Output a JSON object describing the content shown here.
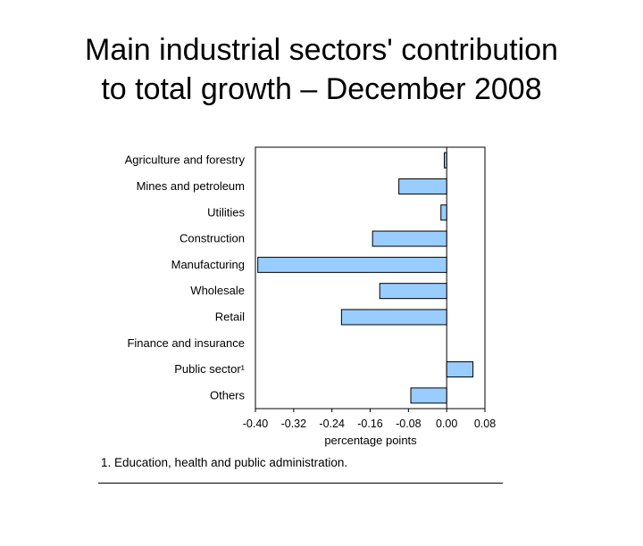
{
  "title_line1": "Main industrial sectors' contribution",
  "title_line2": "to total growth – December 2008",
  "chart_data": {
    "type": "bar",
    "orientation": "horizontal",
    "categories": [
      "Agriculture and forestry",
      "Mines and petroleum",
      "Utilities",
      "Construction",
      "Manufacturing",
      "Wholesale",
      "Retail",
      "Finance and insurance",
      "Public sector¹",
      "Others"
    ],
    "values": [
      -0.005,
      -0.1,
      -0.012,
      -0.155,
      -0.395,
      -0.14,
      -0.22,
      0.0,
      0.055,
      -0.075
    ],
    "xlabel": "percentage points",
    "xlim": [
      -0.4,
      0.08
    ],
    "xticks": [
      "-0.40",
      "-0.32",
      "-0.24",
      "-0.16",
      "-0.08",
      "0.00",
      "0.08"
    ],
    "xtick_values": [
      -0.4,
      -0.32,
      -0.24,
      -0.16,
      -0.08,
      0.0,
      0.08
    ],
    "bar_color": "#99ccff",
    "bar_edge_color": "#000000",
    "grid": false,
    "legend": "none"
  },
  "footnote": "1. Education, health and public administration."
}
